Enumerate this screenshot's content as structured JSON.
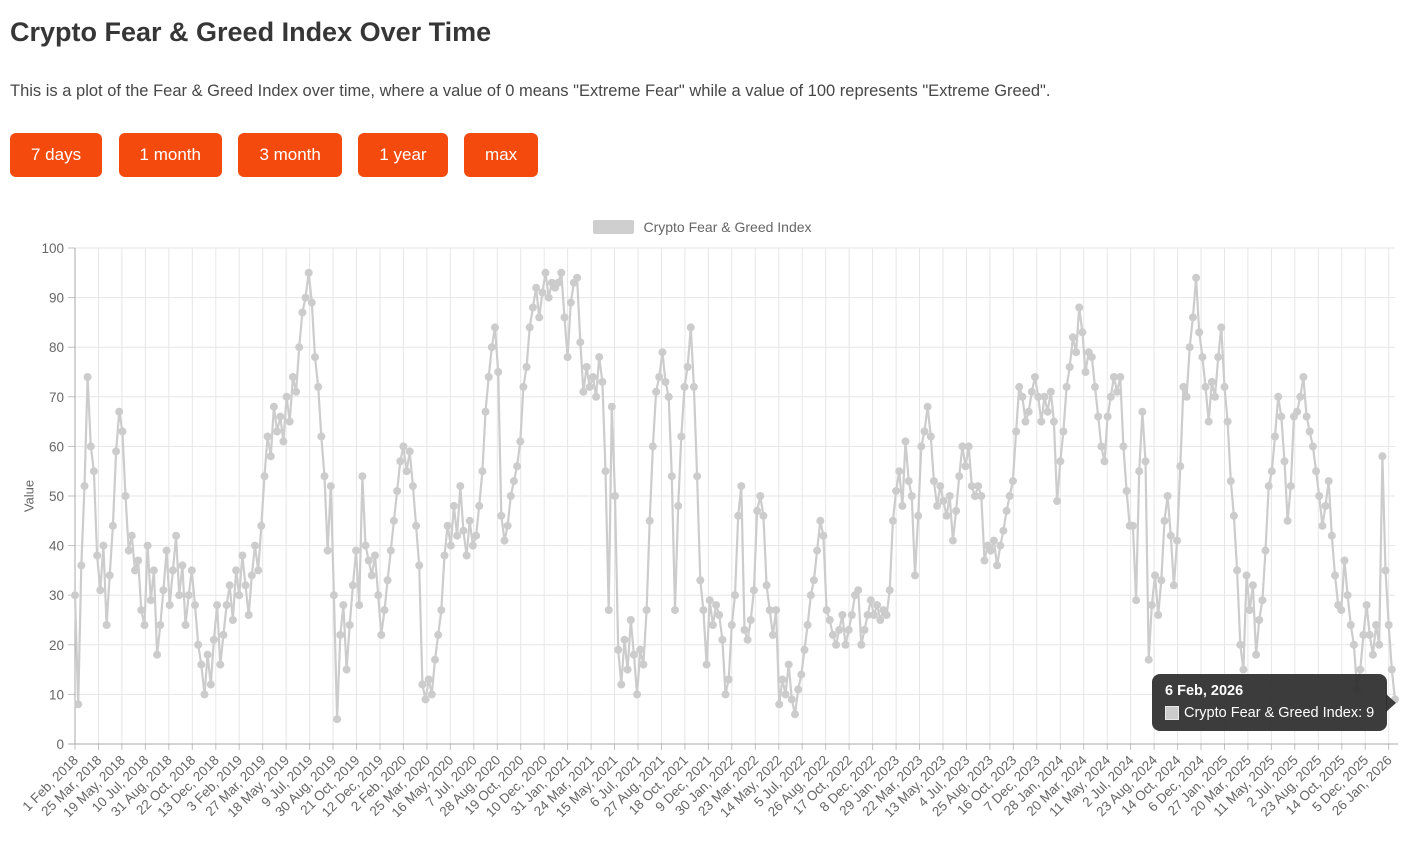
{
  "page": {
    "title": "Crypto Fear & Greed Index Over Time",
    "description": "This is a plot of the Fear & Greed Index over time, where a value of 0 means \"Extreme Fear\" while a value of 100 represents \"Extreme Greed\"."
  },
  "controls": {
    "buttons": [
      "7 days",
      "1 month",
      "3 month",
      "1 year",
      "max"
    ]
  },
  "colors": {
    "accent": "#f54a0d",
    "series": "#cccccc",
    "grid": "#e6e6e6",
    "axis_text": "#666666",
    "tooltip_bg": "#2d2d2d"
  },
  "tooltip": {
    "date": "6 Feb, 2026",
    "series": "Crypto Fear & Greed Index",
    "value": 9,
    "text": "Crypto Fear & Greed Index: 9"
  },
  "chart_data": {
    "type": "line",
    "series_name": "Crypto Fear & Greed Index",
    "ylabel": "Value",
    "xlabel": "",
    "ylim": [
      0,
      100
    ],
    "grid": true,
    "legend_position": "top",
    "marker_radius": 4,
    "y_ticks": [
      0,
      10,
      20,
      30,
      40,
      50,
      60,
      70,
      80,
      90,
      100
    ],
    "x_tick_labels": [
      "1 Feb, 2018",
      "25 Mar, 2018",
      "19 May, 2018",
      "10 Jul, 2018",
      "31 Aug, 2018",
      "22 Oct, 2018",
      "13 Dec, 2018",
      "3 Feb, 2019",
      "27 Mar, 2019",
      "18 May, 2019",
      "9 Jul, 2019",
      "30 Aug, 2019",
      "21 Oct, 2019",
      "12 Dec, 2019",
      "2 Feb, 2020",
      "25 Mar, 2020",
      "16 May, 2020",
      "7 Jul, 2020",
      "28 Aug, 2020",
      "19 Oct, 2020",
      "10 Dec, 2020",
      "31 Jan, 2021",
      "24 Mar, 2021",
      "15 May, 2021",
      "6 Jul, 2021",
      "27 Aug, 2021",
      "18 Oct, 2021",
      "9 Dec, 2021",
      "30 Jan, 2022",
      "23 Mar, 2022",
      "14 May, 2022",
      "5 Jul, 2022",
      "26 Aug, 2022",
      "17 Oct, 2022",
      "8 Dec, 2022",
      "29 Jan, 2023",
      "22 Mar, 2023",
      "13 May, 2023",
      "4 Jul, 2023",
      "25 Aug, 2023",
      "16 Oct, 2023",
      "7 Dec, 2023",
      "28 Jan, 2024",
      "20 Mar, 2024",
      "11 May, 2024",
      "2 Jul, 2024",
      "23 Aug, 2024",
      "14 Oct, 2024",
      "6 Dec, 2024",
      "27 Jan, 2025",
      "20 Mar, 2025",
      "11 May, 2025",
      "2 Jul, 2025",
      "23 Aug, 2025",
      "14 Oct, 2025",
      "5 Dec, 2025",
      "26 Jan, 2026"
    ],
    "tick_interval_days": 52,
    "start_date": "1 Feb, 2018",
    "end_date": "6 Feb, 2026",
    "interval_days": 7,
    "values": [
      30,
      8,
      36,
      52,
      74,
      60,
      55,
      38,
      31,
      40,
      24,
      34,
      44,
      59,
      67,
      63,
      50,
      39,
      42,
      35,
      37,
      27,
      24,
      40,
      29,
      35,
      18,
      24,
      31,
      39,
      28,
      35,
      42,
      30,
      36,
      24,
      30,
      35,
      28,
      20,
      16,
      10,
      18,
      12,
      21,
      28,
      16,
      22,
      28,
      32,
      25,
      35,
      30,
      38,
      32,
      26,
      34,
      40,
      35,
      44,
      54,
      62,
      58,
      68,
      63,
      66,
      61,
      70,
      65,
      74,
      71,
      80,
      87,
      90,
      95,
      89,
      78,
      72,
      62,
      54,
      39,
      52,
      30,
      5,
      22,
      28,
      15,
      24,
      32,
      39,
      28,
      54,
      40,
      37,
      34,
      38,
      30,
      22,
      27,
      33,
      39,
      45,
      51,
      57,
      60,
      55,
      59,
      52,
      44,
      36,
      12,
      9,
      13,
      10,
      17,
      22,
      27,
      38,
      44,
      40,
      48,
      42,
      52,
      43,
      38,
      45,
      40,
      42,
      48,
      55,
      67,
      74,
      80,
      84,
      75,
      46,
      41,
      44,
      50,
      53,
      56,
      61,
      72,
      76,
      84,
      88,
      92,
      86,
      91,
      95,
      90,
      93,
      92,
      93,
      95,
      86,
      78,
      89,
      93,
      94,
      81,
      71,
      76,
      72,
      74,
      70,
      78,
      73,
      55,
      27,
      68,
      50,
      19,
      12,
      21,
      15,
      25,
      18,
      10,
      19,
      16,
      27,
      45,
      60,
      71,
      74,
      79,
      73,
      70,
      54,
      27,
      48,
      62,
      72,
      76,
      84,
      72,
      54,
      33,
      27,
      16,
      29,
      24,
      28,
      26,
      21,
      10,
      13,
      24,
      30,
      46,
      52,
      23,
      21,
      25,
      31,
      47,
      50,
      46,
      32,
      27,
      22,
      27,
      8,
      13,
      10,
      16,
      9,
      6,
      11,
      14,
      19,
      24,
      30,
      33,
      39,
      45,
      42,
      27,
      25,
      22,
      20,
      23,
      26,
      20,
      23,
      26,
      30,
      31,
      20,
      23,
      26,
      29,
      26,
      28,
      25,
      27,
      26,
      31,
      45,
      51,
      55,
      48,
      61,
      53,
      50,
      34,
      46,
      60,
      63,
      68,
      62,
      53,
      48,
      52,
      49,
      46,
      50,
      41,
      47,
      54,
      60,
      56,
      60,
      52,
      50,
      52,
      50,
      37,
      40,
      39,
      41,
      36,
      40,
      43,
      47,
      50,
      53,
      63,
      72,
      70,
      65,
      67,
      71,
      74,
      70,
      65,
      70,
      67,
      71,
      65,
      49,
      57,
      63,
      72,
      76,
      82,
      79,
      88,
      83,
      75,
      79,
      78,
      72,
      66,
      60,
      57,
      66,
      70,
      74,
      71,
      74,
      60,
      51,
      44,
      44,
      29,
      55,
      67,
      57,
      17,
      28,
      34,
      26,
      33,
      45,
      50,
      42,
      32,
      41,
      56,
      72,
      70,
      80,
      86,
      94,
      83,
      78,
      72,
      65,
      73,
      70,
      78,
      84,
      72,
      65,
      53,
      46,
      35,
      20,
      15,
      34,
      27,
      32,
      18,
      25,
      29,
      39,
      52,
      55,
      62,
      70,
      66,
      57,
      45,
      52,
      66,
      67,
      70,
      74,
      66,
      63,
      60,
      55,
      50,
      44,
      48,
      53,
      42,
      34,
      28,
      27,
      37,
      30,
      24,
      20,
      11,
      15,
      22,
      28,
      22,
      18,
      24,
      20,
      58,
      35,
      24,
      15,
      9
    ],
    "last_point": {
      "date": "6 Feb, 2026",
      "value": 9
    }
  }
}
